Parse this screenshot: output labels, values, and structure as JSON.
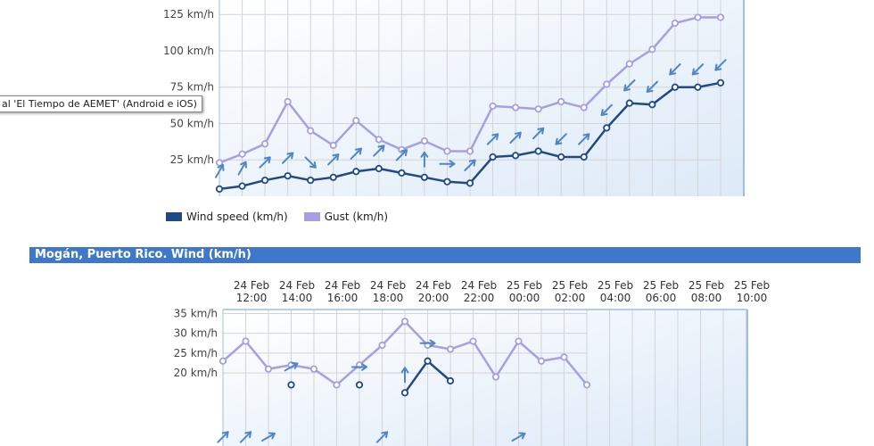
{
  "tooltip_text": "al 'El Tiempo de AEMET' (Android e iOS)",
  "chart2_header": "Mogán, Puerto Rico. Wind (km/h)",
  "colors": {
    "wind": "#1f4a86",
    "gust": "#a79fe3",
    "arrow": "#4f86c6",
    "grid": "#d4d4d4",
    "plot_border": "#9cc0e2",
    "header_bg": "#3f78cb"
  },
  "chart_data": [
    {
      "type": "line",
      "title": "",
      "grid": true,
      "yticks": [
        "25 km/h",
        "50 km/h",
        "75 km/h",
        "100 km/h",
        "125 km/h"
      ],
      "ytick_values": [
        25,
        50,
        75,
        100,
        125
      ],
      "ylim": [
        0,
        138
      ],
      "legend": "bottom",
      "series": [
        {
          "name": "Wind speed (km/h)",
          "values": [
            5,
            7,
            11,
            14,
            11,
            13,
            17,
            19,
            16,
            13,
            10,
            9,
            27,
            28,
            31,
            27,
            27,
            47,
            64,
            63,
            75,
            75,
            78
          ]
        },
        {
          "name": "Gust (km/h)",
          "values": [
            23,
            29,
            36,
            65,
            45,
            35,
            52,
            39,
            32,
            38,
            31,
            31,
            62,
            61,
            60,
            65,
            61,
            77,
            91,
            101,
            119,
            123,
            123
          ]
        }
      ],
      "direction_arrows_deg": [
        30,
        30,
        45,
        45,
        135,
        45,
        45,
        45,
        45,
        0,
        90,
        45,
        45,
        45,
        45,
        225,
        45,
        225,
        225,
        225,
        225,
        225,
        225
      ]
    },
    {
      "type": "line",
      "title": "Mogán, Puerto Rico. Wind (km/h)",
      "grid": true,
      "xticks": [
        "24 Feb 12:00",
        "24 Feb 14:00",
        "24 Feb 16:00",
        "24 Feb 18:00",
        "24 Feb 20:00",
        "24 Feb 22:00",
        "25 Feb 00:00",
        "25 Feb 02:00",
        "25 Feb 04:00",
        "25 Feb 06:00",
        "25 Feb 08:00",
        "25 Feb 10:00"
      ],
      "yticks": [
        "20 km/h",
        "25 km/h",
        "30 km/h",
        "35 km/h"
      ],
      "ytick_values": [
        20,
        25,
        30,
        35
      ],
      "ylim": [
        0,
        36
      ],
      "series": [
        {
          "name": "Gust (km/h)",
          "values": [
            23,
            28,
            21,
            22,
            21,
            17,
            22,
            27,
            33,
            27,
            26,
            28,
            19,
            28,
            23,
            24,
            17
          ]
        },
        {
          "name": "Wind speed (km/h)",
          "values": [
            null,
            null,
            null,
            17,
            null,
            null,
            17,
            null,
            15,
            23,
            18,
            null,
            null,
            null,
            null,
            null,
            null
          ]
        }
      ],
      "direction_arrows_deg": [
        45,
        45,
        60,
        60,
        null,
        null,
        90,
        45,
        0,
        90,
        null,
        null,
        null,
        60,
        null,
        null,
        null
      ]
    }
  ]
}
